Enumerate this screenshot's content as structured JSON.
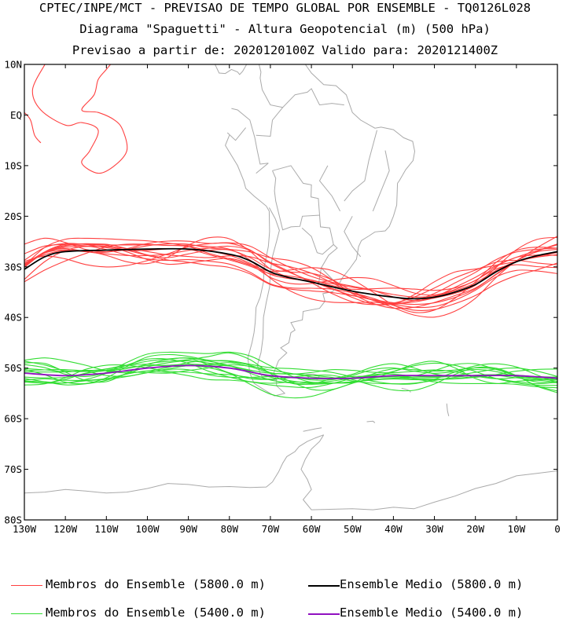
{
  "title": {
    "line1": "CPTEC/INPE/MCT - PREVISAO DE TEMPO GLOBAL POR ENSEMBLE - TQ0126L028",
    "line2": "Diagrama \"Spaguetti\" - Altura Geopotencial (m) (500 hPa)",
    "line3": "Previsao a partir de: 2020120100Z  Valido para: 2020121400Z"
  },
  "axes": {
    "lat_labels": [
      "10N",
      "EQ",
      "10S",
      "20S",
      "30S",
      "40S",
      "50S",
      "60S",
      "70S",
      "80S"
    ],
    "lon_labels": [
      "130W",
      "120W",
      "110W",
      "100W",
      "90W",
      "80W",
      "70W",
      "60W",
      "50W",
      "40W",
      "30W",
      "20W",
      "10W",
      "0"
    ]
  },
  "legend": {
    "red_members": "Membros do Ensemble (5800.0 m)",
    "black_mean": "Ensemble Medio (5800.0 m)",
    "green_members": "Membros do Ensemble (5400.0 m)",
    "purple_mean": "Ensemble Medio (5400.0 m)"
  },
  "colors": {
    "red_members": "#ff4040",
    "black_mean": "#000000",
    "green_members": "#33dd33",
    "purple_mean": "#9010c0",
    "coastline": "#aaaaaa"
  },
  "map_extent": {
    "lon": [
      -130,
      0
    ],
    "lat": [
      -80,
      10
    ]
  },
  "contours": {
    "mean_5800": [
      [
        -130,
        -30.5
      ],
      [
        -125,
        -28
      ],
      [
        -120,
        -27
      ],
      [
        -110,
        -26.7
      ],
      [
        -100,
        -26.5
      ],
      [
        -90,
        -26.5
      ],
      [
        -80,
        -27.5
      ],
      [
        -75,
        -28.8
      ],
      [
        -70,
        -31
      ],
      [
        -66,
        -32
      ],
      [
        -60,
        -33
      ],
      [
        -50,
        -34.8
      ],
      [
        -40,
        -36
      ],
      [
        -35,
        -36.3
      ],
      [
        -30,
        -36
      ],
      [
        -25,
        -35
      ],
      [
        -20,
        -33.5
      ],
      [
        -15,
        -31
      ],
      [
        -10,
        -29
      ],
      [
        -5,
        -27.8
      ],
      [
        0,
        -27
      ]
    ],
    "mean_5400": [
      [
        -130,
        -51
      ],
      [
        -120,
        -51.5
      ],
      [
        -110,
        -51
      ],
      [
        -100,
        -50
      ],
      [
        -90,
        -49.5
      ],
      [
        -80,
        -50
      ],
      [
        -70,
        -51.5
      ],
      [
        -60,
        -52
      ],
      [
        -50,
        -52
      ],
      [
        -40,
        -51.5
      ],
      [
        -30,
        -51.5
      ],
      [
        -20,
        -51.5
      ],
      [
        -10,
        -51.5
      ],
      [
        0,
        -52
      ]
    ]
  }
}
